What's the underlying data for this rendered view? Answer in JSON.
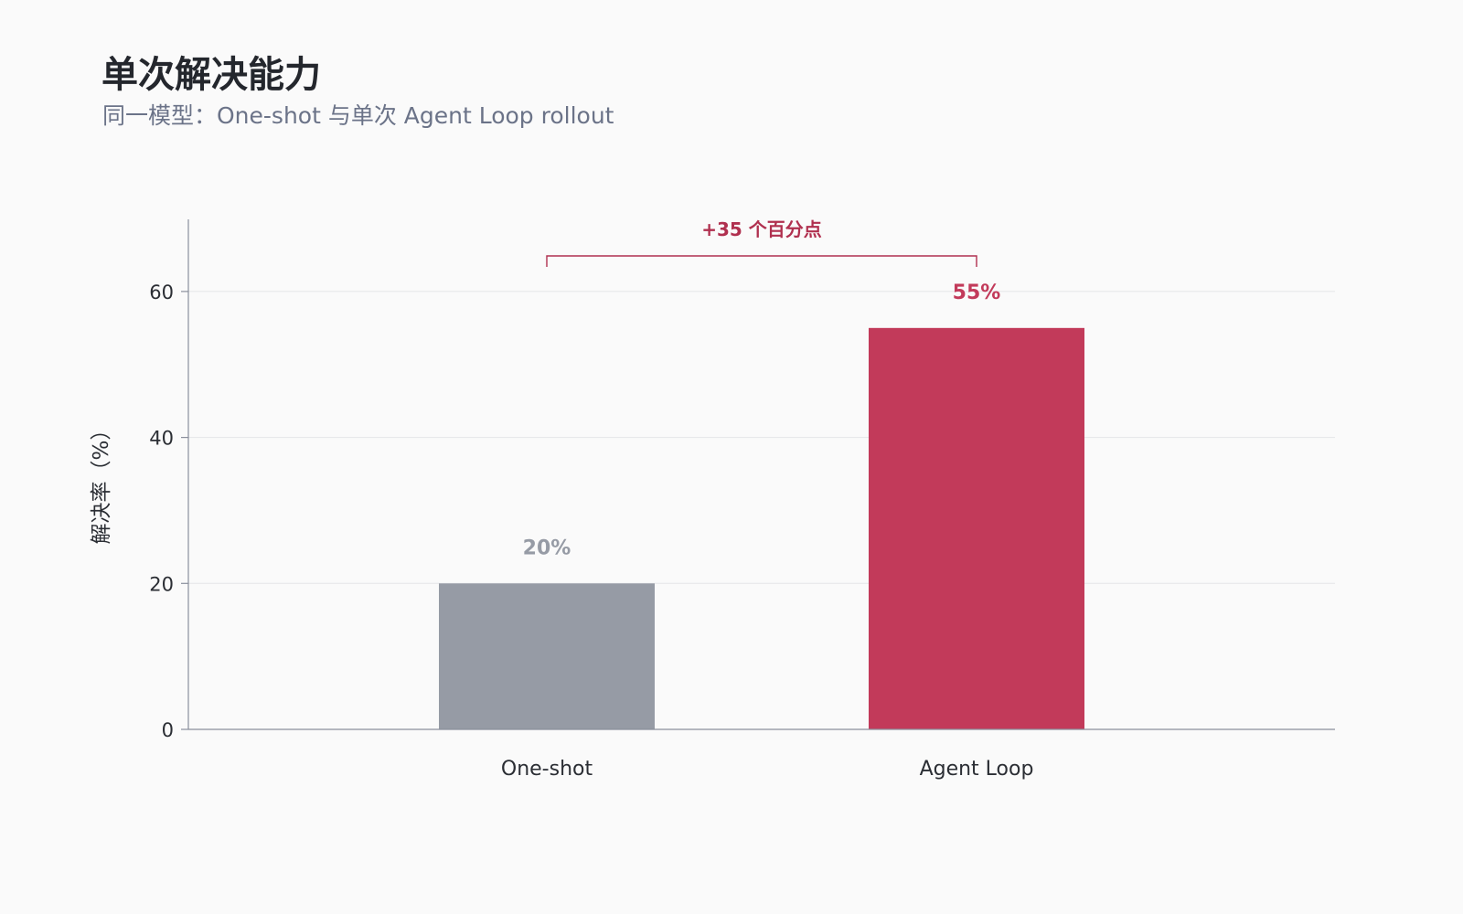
{
  "header": {
    "title": "单次解决能力",
    "subtitle": "同一模型：One-shot 与单次 Agent Loop rollout"
  },
  "chart_data": {
    "type": "bar",
    "categories": [
      "One-shot",
      "Agent Loop"
    ],
    "values": [
      20,
      55
    ],
    "value_labels": [
      "20%",
      "55%"
    ],
    "bar_colors": [
      "#969ba5",
      "#c23a5a"
    ],
    "label_colors": [
      "#969ba5",
      "#c23a5a"
    ],
    "ylabel": "解决率（%）",
    "ylim": [
      0,
      70
    ],
    "yticks": [
      0,
      20,
      40,
      60
    ],
    "grid": true,
    "annotation": {
      "text": "+35 个百分点",
      "from": "One-shot",
      "to": "Agent Loop",
      "color": "#b0304f"
    }
  },
  "colors": {
    "background": "#fafafa",
    "axis": "#8a8f9c",
    "grid": "#e4e5e8"
  }
}
